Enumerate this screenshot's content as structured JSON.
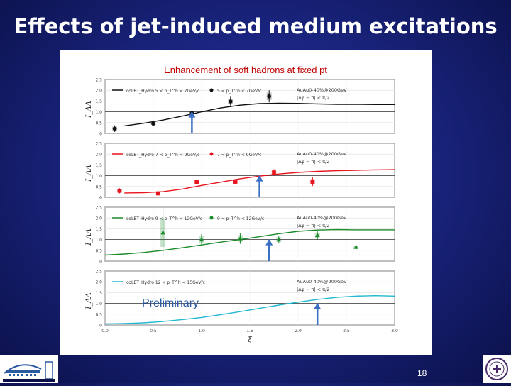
{
  "slide": {
    "title": "Effects of jet-induced medium excitations",
    "page_number": "18"
  },
  "logos": {
    "left": "BERKELEY LAB",
    "right": "university seal"
  },
  "colors": {
    "background": "#1a2580",
    "arrow": "#3a6fc4",
    "series_black": "#111111",
    "series_red": "#e8141e",
    "series_green": "#1a8a2a",
    "series_cyan": "#22b8d2"
  },
  "chart_data": {
    "type": "line",
    "title": "Enhancement of soft hadrons at fixed pt",
    "xlabel": "ξ",
    "ylabel": "I_AA",
    "xlim": [
      0.0,
      3.0
    ],
    "ylim": [
      0,
      2.5
    ],
    "x_ticks": [
      "0.0",
      "0.5",
      "1.0",
      "1.5",
      "2.0",
      "2.5",
      "3.0"
    ],
    "y_ticks": [
      "0",
      "0.5",
      "1.0",
      "1.5",
      "2.0",
      "2.5"
    ],
    "reference_line": 1.0,
    "annotation": "Preliminary",
    "panels": [
      {
        "color": "#111111",
        "model_label": "coLBT_Hydro 5 < p_T^h < 7GeV/c",
        "data_label": "5 < p_T^h < 7GeV/c",
        "system": "AuAu0-40%@200GeV",
        "cut": "|Δφ − π| < π/2",
        "curve": {
          "x": [
            0.2,
            0.4,
            0.6,
            0.8,
            1.0,
            1.2,
            1.4,
            1.6,
            1.8,
            2.0,
            2.2,
            2.4,
            2.6,
            2.8,
            3.0
          ],
          "y": [
            0.35,
            0.47,
            0.62,
            0.8,
            1.0,
            1.18,
            1.31,
            1.38,
            1.4,
            1.39,
            1.37,
            1.35,
            1.35,
            1.34,
            1.34
          ]
        },
        "points": {
          "x": [
            0.1,
            0.5,
            0.9,
            1.3,
            1.7
          ],
          "y": [
            0.22,
            0.45,
            0.95,
            1.48,
            1.72
          ],
          "err": [
            0.15,
            0.05,
            0.1,
            0.22,
            0.28
          ]
        },
        "arrow_x": 0.9
      },
      {
        "color": "#e8141e",
        "model_label": "coLBT_Hydro 7 < p_T^h < 9GeV/c",
        "data_label": "7 < p_T^h < 9GeV/c",
        "system": "AuAu0-40%@200GeV",
        "cut": "|Δφ − π| < π/2",
        "curve": {
          "x": [
            0.2,
            0.4,
            0.6,
            0.8,
            1.0,
            1.2,
            1.4,
            1.6,
            1.8,
            2.0,
            2.2,
            2.4,
            2.6,
            2.8,
            3.0
          ],
          "y": [
            0.2,
            0.21,
            0.26,
            0.38,
            0.55,
            0.7,
            0.86,
            0.98,
            1.08,
            1.15,
            1.2,
            1.23,
            1.25,
            1.27,
            1.28
          ]
        },
        "points": {
          "x": [
            0.15,
            0.55,
            0.95,
            1.35,
            1.75,
            2.15
          ],
          "y": [
            0.3,
            0.18,
            0.7,
            0.72,
            1.15,
            0.72
          ],
          "err": [
            0.12,
            0.06,
            0.1,
            0.1,
            0.15,
            0.2
          ]
        },
        "arrow_x": 1.6
      },
      {
        "color": "#1a8a2a",
        "model_label": "coLBT_Hydro 9 < p_T^h < 12GeV/c",
        "data_label": "9 < p_T^h < 12GeV/c",
        "system": "AuAu0-40%@200GeV",
        "cut": "|Δφ − π| < π/2",
        "curve": {
          "x": [
            0.0,
            0.2,
            0.4,
            0.6,
            0.8,
            1.0,
            1.2,
            1.4,
            1.6,
            1.8,
            2.0,
            2.2,
            2.4,
            2.6,
            2.8,
            3.0
          ],
          "y": [
            0.28,
            0.33,
            0.4,
            0.5,
            0.62,
            0.75,
            0.88,
            1.0,
            1.13,
            1.27,
            1.38,
            1.44,
            1.46,
            1.45,
            1.45,
            1.45
          ]
        },
        "points": {
          "x": [
            0.6,
            1.0,
            1.4,
            1.8,
            2.2,
            2.6
          ],
          "y": [
            1.32,
            1.0,
            1.05,
            1.0,
            1.2,
            0.65
          ],
          "err": [
            1.1,
            0.25,
            0.25,
            0.18,
            0.2,
            0.12
          ]
        },
        "arrow_x": 1.7
      },
      {
        "color": "#22b8d2",
        "model_label": "coLBT_Hydro 12 < p_T^h < 15GeV/c",
        "data_label": "",
        "system": "AuAu0-40%@200GeV",
        "cut": "|Δφ − π| < π/2",
        "curve": {
          "x": [
            0.0,
            0.2,
            0.4,
            0.6,
            0.8,
            1.0,
            1.2,
            1.4,
            1.6,
            1.8,
            2.0,
            2.2,
            2.4,
            2.6,
            2.8,
            3.0
          ],
          "y": [
            0.05,
            0.07,
            0.1,
            0.16,
            0.25,
            0.35,
            0.48,
            0.62,
            0.77,
            0.92,
            1.06,
            1.18,
            1.28,
            1.34,
            1.36,
            1.34
          ]
        },
        "points": {
          "x": [],
          "y": [],
          "err": []
        },
        "arrow_x": 2.2
      }
    ]
  }
}
